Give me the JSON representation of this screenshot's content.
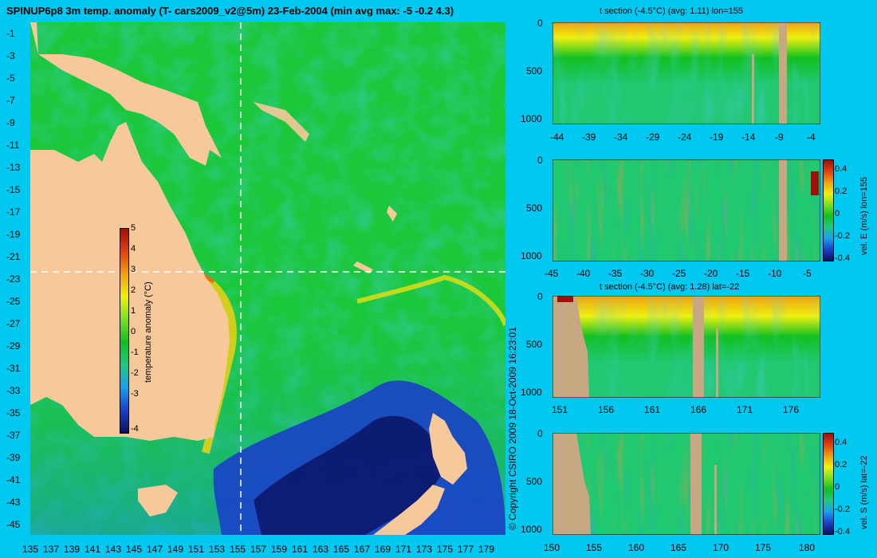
{
  "main": {
    "title": "SPINUP6p8 3m temp. anomaly (T- cars2009_v2@5m) 23-Feb-2004 (min avg max: -5 -0.2 4.3)",
    "lat_ticks": [
      "-1",
      "-3",
      "-5",
      "-7",
      "-9",
      "-11",
      "-13",
      "-15",
      "-17",
      "-19",
      "-21",
      "-23",
      "-25",
      "-27",
      "-29",
      "-31",
      "-33",
      "-35",
      "-37",
      "-39",
      "-41",
      "-43",
      "-45"
    ],
    "lon_ticks": [
      "135",
      "137",
      "139",
      "141",
      "143",
      "145",
      "147",
      "149",
      "151",
      "153",
      "155",
      "157",
      "159",
      "161",
      "163",
      "165",
      "167",
      "169",
      "171",
      "173",
      "175",
      "177",
      "179"
    ],
    "colorbar": {
      "label": "temperature anomaly (°C)",
      "ticks": [
        "5",
        "4",
        "3",
        "2",
        "1",
        "0",
        "-1",
        "-2",
        "-3",
        "-4"
      ],
      "colors": [
        "#0a1060",
        "#1a40c8",
        "#18a0f0",
        "#20c880",
        "#10c020",
        "#78e020",
        "#f0f010",
        "#f0a010",
        "#e04010",
        "#a01008"
      ]
    },
    "copyright": "© Copyright CSIRO 2009   18-Oct-2009 16:23:01",
    "colors": {
      "ocean": "#1ac83a",
      "land": "#f7c89a",
      "background": "#00c8f0"
    }
  },
  "panels": {
    "p1": {
      "title": "t section (-4.5°C) (avg: 1.11) lon=155",
      "yticks": [
        "0",
        "500",
        "1000"
      ],
      "xticks": [
        "-44",
        "-39",
        "-34",
        "-29",
        "-24",
        "-19",
        "-14",
        "-9",
        "-4"
      ]
    },
    "p2": {
      "yticks": [
        "0",
        "500",
        "1000"
      ],
      "xticks": [
        "-45",
        "-40",
        "-35",
        "-30",
        "-25",
        "-20",
        "-15",
        "-10",
        "-5"
      ],
      "cb_ticks": [
        "0.4",
        "0.2",
        "0",
        "-0.2",
        "-0.4"
      ],
      "cb_label": "vel. E (m/s) lon=155"
    },
    "p3": {
      "title": "t section (-4.5°C) (avg: 1.28) lat=-22",
      "yticks": [
        "0",
        "500",
        "1000"
      ],
      "xticks": [
        "151",
        "156",
        "161",
        "166",
        "171",
        "176"
      ]
    },
    "p4": {
      "yticks": [
        "0",
        "500",
        "1000"
      ],
      "xticks": [
        "150",
        "155",
        "160",
        "165",
        "170",
        "175",
        "180"
      ],
      "cb_ticks": [
        "0.4",
        "0.2",
        "0",
        "-0.2",
        "-0.4"
      ],
      "cb_label": "vel. S (m/s) lat=-22"
    }
  }
}
